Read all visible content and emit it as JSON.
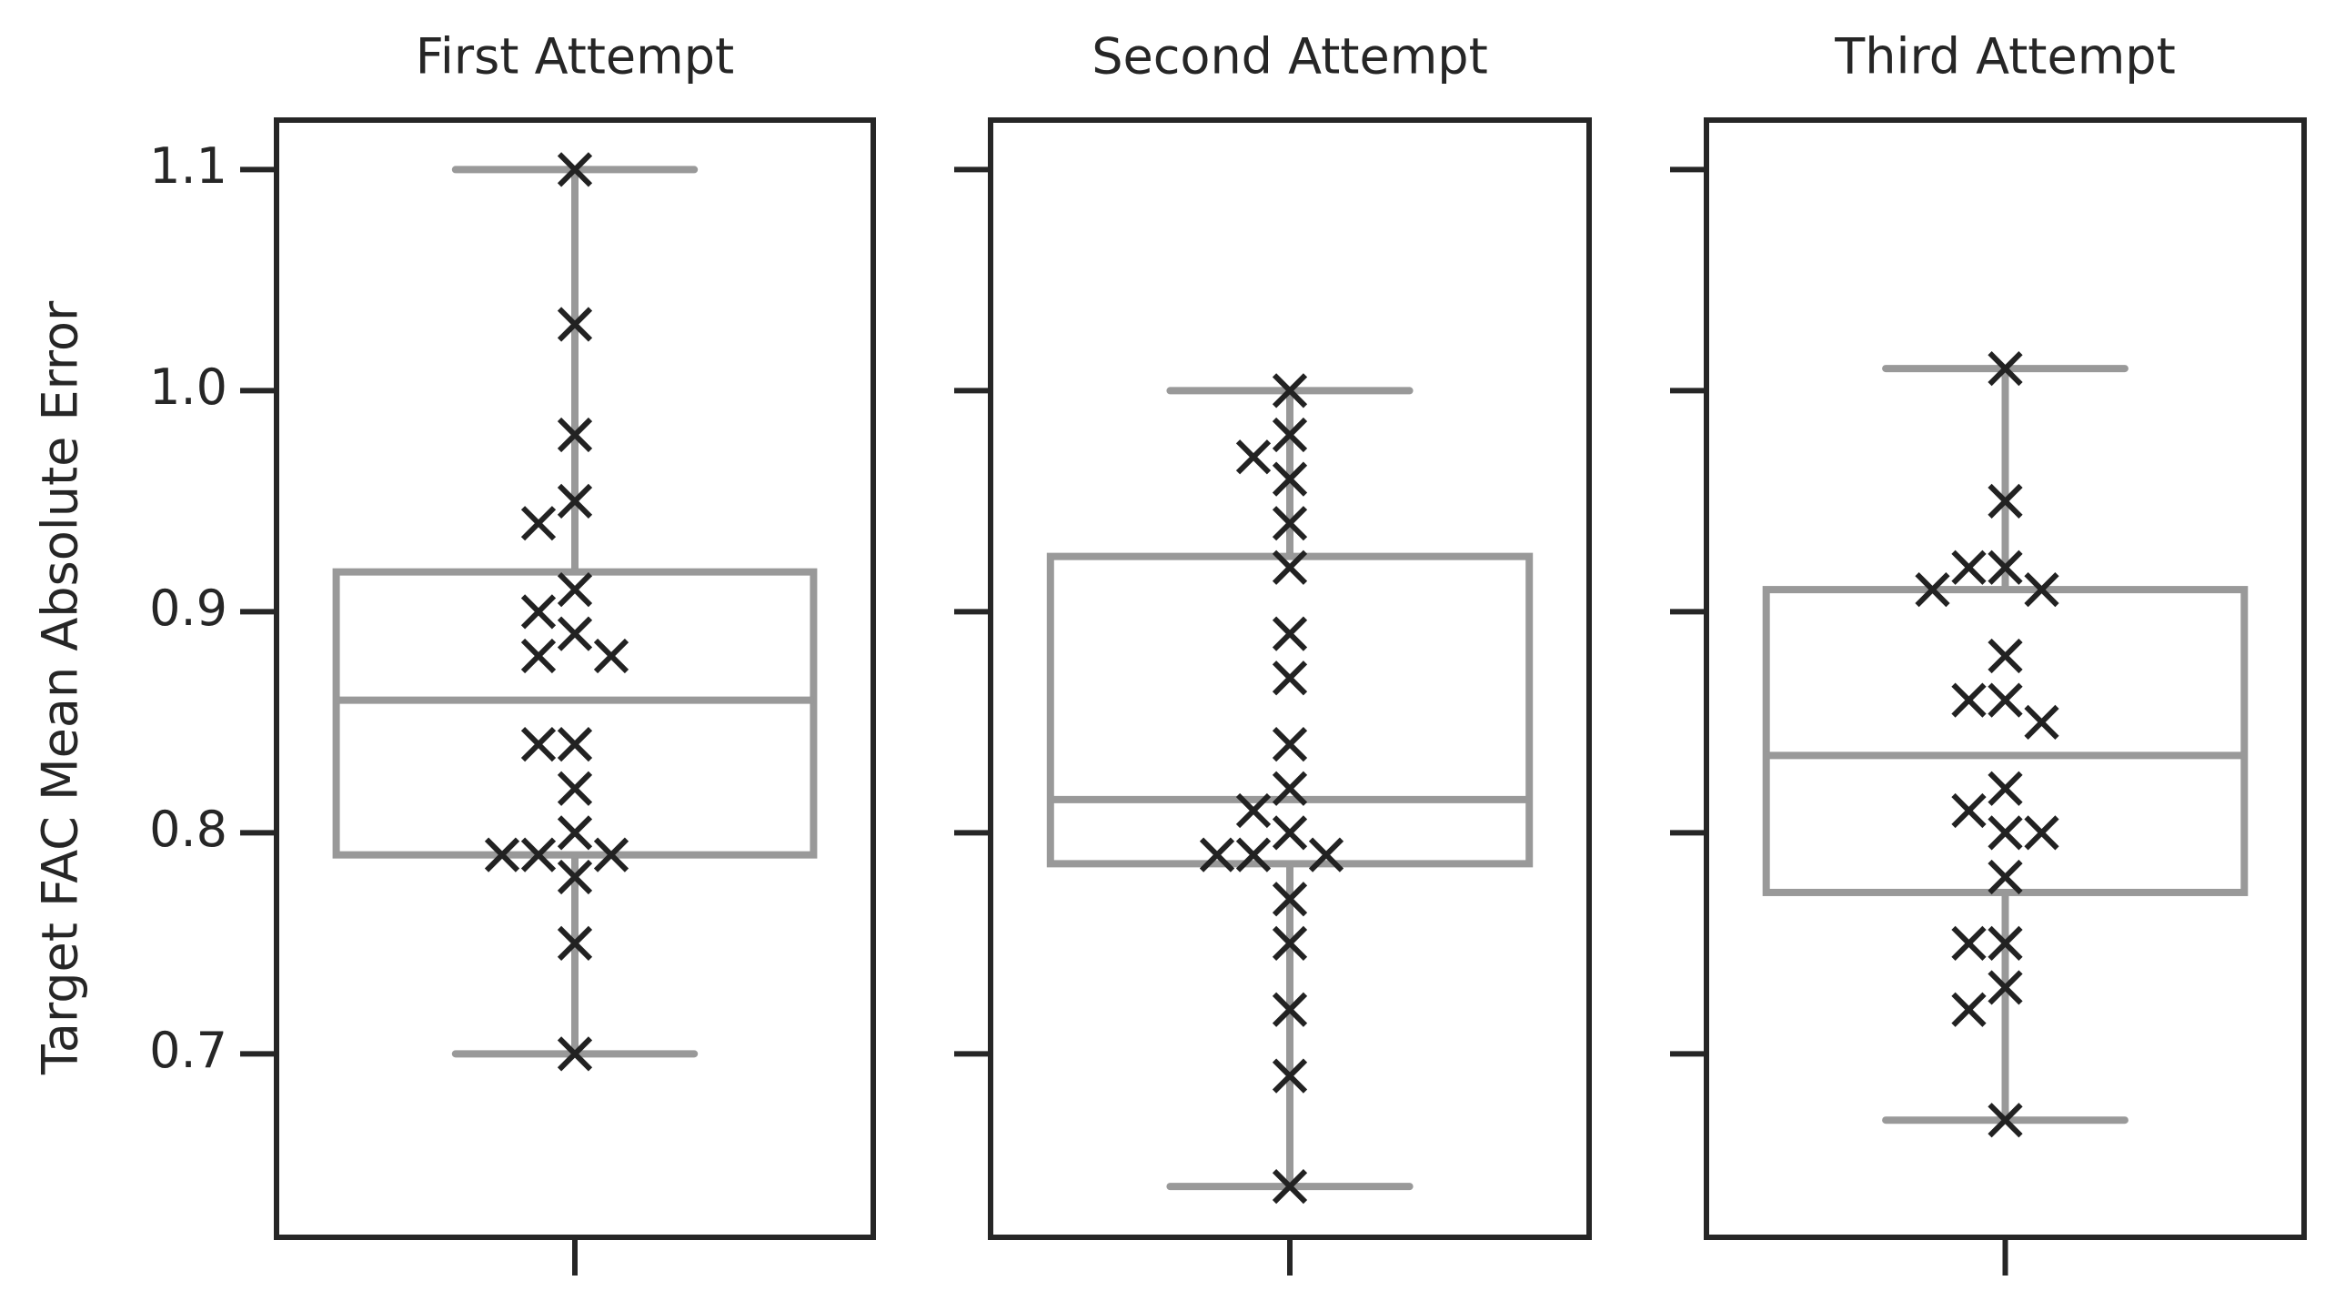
{
  "chart_data": [
    {
      "type": "box",
      "title": "First Attempt",
      "ylabel": "Target FAC Mean Absolute Error",
      "ylim": [
        0.617,
        1.1224
      ],
      "yticks": [
        {
          "value": 0.7,
          "label": "0.7"
        },
        {
          "value": 0.8,
          "label": "0.8"
        },
        {
          "value": 0.9,
          "label": "0.9"
        },
        {
          "value": 1.0,
          "label": "1.0"
        },
        {
          "value": 1.1,
          "label": "1.1"
        }
      ],
      "whisker_low": 0.7,
      "q1": 0.79,
      "median": 0.86,
      "q3": 0.918,
      "whisker_high": 1.1,
      "box_color": "#999999",
      "marker_color": "#222222",
      "values": [
        1.1,
        1.03,
        0.98,
        0.95,
        0.94,
        0.91,
        0.9,
        0.89,
        0.88,
        0.88,
        0.84,
        0.84,
        0.82,
        0.8,
        0.79,
        0.79,
        0.79,
        0.78,
        0.75,
        0.7
      ]
    },
    {
      "type": "box",
      "title": "Second Attempt",
      "ylim": [
        0.617,
        1.1224
      ],
      "whisker_low": 0.64,
      "q1": 0.786,
      "median": 0.815,
      "q3": 0.925,
      "whisker_high": 1.0,
      "box_color": "#999999",
      "marker_color": "#222222",
      "values": [
        1.0,
        0.98,
        0.97,
        0.96,
        0.94,
        0.92,
        0.89,
        0.87,
        0.84,
        0.82,
        0.81,
        0.8,
        0.79,
        0.79,
        0.79,
        0.77,
        0.75,
        0.72,
        0.69,
        0.64
      ]
    },
    {
      "type": "box",
      "title": "Third Attempt",
      "ylim": [
        0.617,
        1.1224
      ],
      "whisker_low": 0.67,
      "q1": 0.773,
      "median": 0.835,
      "q3": 0.91,
      "whisker_high": 1.01,
      "box_color": "#999999",
      "marker_color": "#222222",
      "values": [
        1.01,
        0.95,
        0.92,
        0.92,
        0.91,
        0.91,
        0.88,
        0.86,
        0.86,
        0.85,
        0.82,
        0.81,
        0.8,
        0.8,
        0.78,
        0.75,
        0.75,
        0.73,
        0.72,
        0.67
      ]
    }
  ]
}
